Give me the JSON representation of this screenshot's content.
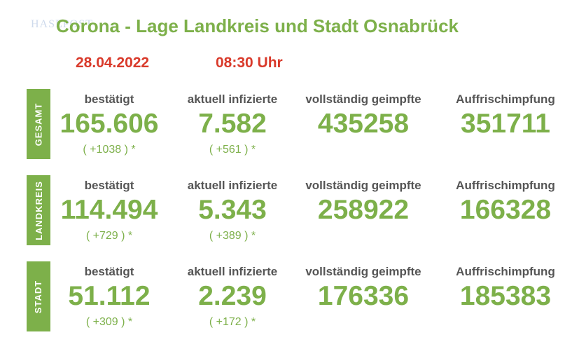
{
  "header": {
    "watermark": "HASEPOST",
    "title": "Corona - Lage Landkreis und Stadt Osnabrück",
    "date": "28.04.2022",
    "time": "08:30 Uhr"
  },
  "colors": {
    "green": "#7db04a",
    "red": "#d93a2b",
    "label_gray": "#555555"
  },
  "labels": {
    "confirmed": "bestätigt",
    "infected": "aktuell infizierte",
    "vaccinated": "vollständig geimpfte",
    "booster": "Auffrischimpfung"
  },
  "sections": [
    {
      "side": "GESAMT",
      "confirmed": "165.606",
      "confirmed_delta": "( +1038 ) *",
      "infected": "7.582",
      "infected_delta": "( +561 ) *",
      "vaccinated": "435258",
      "booster": "351711"
    },
    {
      "side": "LANDKREIS",
      "confirmed": "114.494",
      "confirmed_delta": "( +729 ) *",
      "infected": "5.343",
      "infected_delta": "( +389 ) *",
      "vaccinated": "258922",
      "booster": "166328"
    },
    {
      "side": "STADT",
      "confirmed": "51.112",
      "confirmed_delta": "( +309 ) *",
      "infected": "2.239",
      "infected_delta": "( +172 ) *",
      "vaccinated": "176336",
      "booster": "185383"
    }
  ]
}
